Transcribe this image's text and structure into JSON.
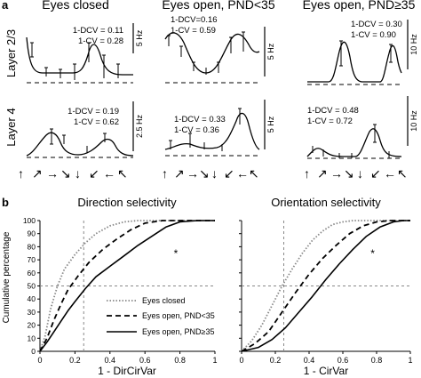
{
  "panel_labels": {
    "a": "a",
    "b": "b"
  },
  "panel_a": {
    "column_titles": [
      "Eyes closed",
      "Eyes open, PND<35",
      "Eyes open, PND≥35"
    ],
    "row_labels": [
      "Layer 2/3",
      "Layer 4"
    ],
    "direction_arrows": [
      "↑",
      "↗",
      "→",
      "↘",
      "↓",
      "↙",
      "←",
      "↖"
    ],
    "cells": [
      {
        "row": 0,
        "col": 0,
        "dcv_label": "1-DCV = 0.11",
        "cv_label": "1-CV = 0.28",
        "scale_label": "5 Hz"
      },
      {
        "row": 0,
        "col": 1,
        "dcv_label": "1-DCV=0.16",
        "cv_label": "1-CV = 0.59",
        "scale_label": "5 Hz"
      },
      {
        "row": 0,
        "col": 2,
        "dcv_label": "1-DCV = 0.30",
        "cv_label": "1-CV = 0.90",
        "scale_label": "10 Hz"
      },
      {
        "row": 1,
        "col": 0,
        "dcv_label": "1-DCV = 0.19",
        "cv_label": "1-CV = 0.62",
        "scale_label": "2.5 Hz"
      },
      {
        "row": 1,
        "col": 1,
        "dcv_label": "1-DCV = 0.33",
        "cv_label": "1-CV = 0.36",
        "scale_label": "5 Hz"
      },
      {
        "row": 1,
        "col": 2,
        "dcv_label": "1-DCV = 0.48",
        "cv_label": "1-CV = 0.72",
        "scale_label": "10 Hz"
      }
    ]
  },
  "chart_data": [
    {
      "type": "line",
      "title": "Direction selectivity",
      "xlabel": "1 - DirCirVar",
      "ylabel": "Cumulative percentage",
      "xlim": [
        0,
        1
      ],
      "ylim": [
        0,
        100
      ],
      "xticks": [
        "0",
        "0.2",
        "0.4",
        "0.6",
        "0.8",
        "1"
      ],
      "yticks": [
        "0",
        "10",
        "20",
        "30",
        "40",
        "50",
        "60",
        "70",
        "80",
        "90",
        "100"
      ],
      "ref_lines": {
        "x": 0.25,
        "y": 50
      },
      "annotation": "*",
      "legend_position": "lower-center",
      "series": [
        {
          "name": "Eyes closed",
          "style": "dotted",
          "color": "#888888",
          "x": [
            0,
            0.03,
            0.06,
            0.1,
            0.14,
            0.2,
            0.26,
            0.32,
            0.4,
            0.48,
            0.56,
            0.64
          ],
          "y": [
            0,
            12,
            32,
            50,
            63,
            74,
            83,
            90,
            96,
            99,
            100,
            100
          ]
        },
        {
          "name": "Eyes open, PND<35",
          "style": "dashed",
          "color": "#000000",
          "x": [
            0,
            0.04,
            0.08,
            0.12,
            0.16,
            0.22,
            0.28,
            0.36,
            0.44,
            0.52,
            0.6,
            0.7,
            0.8
          ],
          "y": [
            0,
            10,
            24,
            36,
            47,
            58,
            68,
            78,
            86,
            93,
            98,
            100,
            100
          ]
        },
        {
          "name": "Eyes open, PND≥35",
          "style": "solid",
          "color": "#000000",
          "x": [
            0,
            0.04,
            0.08,
            0.12,
            0.16,
            0.2,
            0.26,
            0.32,
            0.4,
            0.48,
            0.56,
            0.64,
            0.72,
            0.8,
            0.9,
            1.0
          ],
          "y": [
            0,
            7,
            15,
            23,
            31,
            38,
            48,
            57,
            65,
            73,
            81,
            88,
            95,
            99,
            100,
            100
          ]
        }
      ]
    },
    {
      "type": "line",
      "title": "Orientation selectivity",
      "xlabel": "1 - CirVar",
      "ylabel": "",
      "xlim": [
        0,
        1
      ],
      "ylim": [
        0,
        100
      ],
      "xticks": [
        "0",
        "0.2",
        "0.4",
        "0.6",
        "0.8",
        "1"
      ],
      "yticks": [],
      "ref_lines": {
        "x": 0.25,
        "y": 50
      },
      "annotation": "*",
      "series": [
        {
          "name": "Eyes closed",
          "style": "dotted",
          "color": "#888888",
          "x": [
            0,
            0.06,
            0.12,
            0.18,
            0.24,
            0.3,
            0.36,
            0.42,
            0.48,
            0.54,
            0.6,
            0.66,
            0.72
          ],
          "y": [
            0,
            8,
            20,
            35,
            50,
            63,
            75,
            85,
            92,
            97,
            99,
            100,
            100
          ]
        },
        {
          "name": "Eyes open, PND<35",
          "style": "dashed",
          "color": "#000000",
          "x": [
            0,
            0.08,
            0.16,
            0.24,
            0.32,
            0.4,
            0.48,
            0.56,
            0.64,
            0.72,
            0.8,
            0.88
          ],
          "y": [
            0,
            6,
            15,
            30,
            45,
            59,
            71,
            81,
            90,
            96,
            99,
            100
          ]
        },
        {
          "name": "Eyes open, PND≥35",
          "style": "solid",
          "color": "#000000",
          "x": [
            0,
            0.1,
            0.18,
            0.26,
            0.34,
            0.42,
            0.5,
            0.58,
            0.66,
            0.74,
            0.82,
            0.9,
            0.96
          ],
          "y": [
            0,
            3,
            9,
            18,
            30,
            42,
            55,
            67,
            78,
            88,
            95,
            99,
            100
          ]
        }
      ]
    }
  ]
}
